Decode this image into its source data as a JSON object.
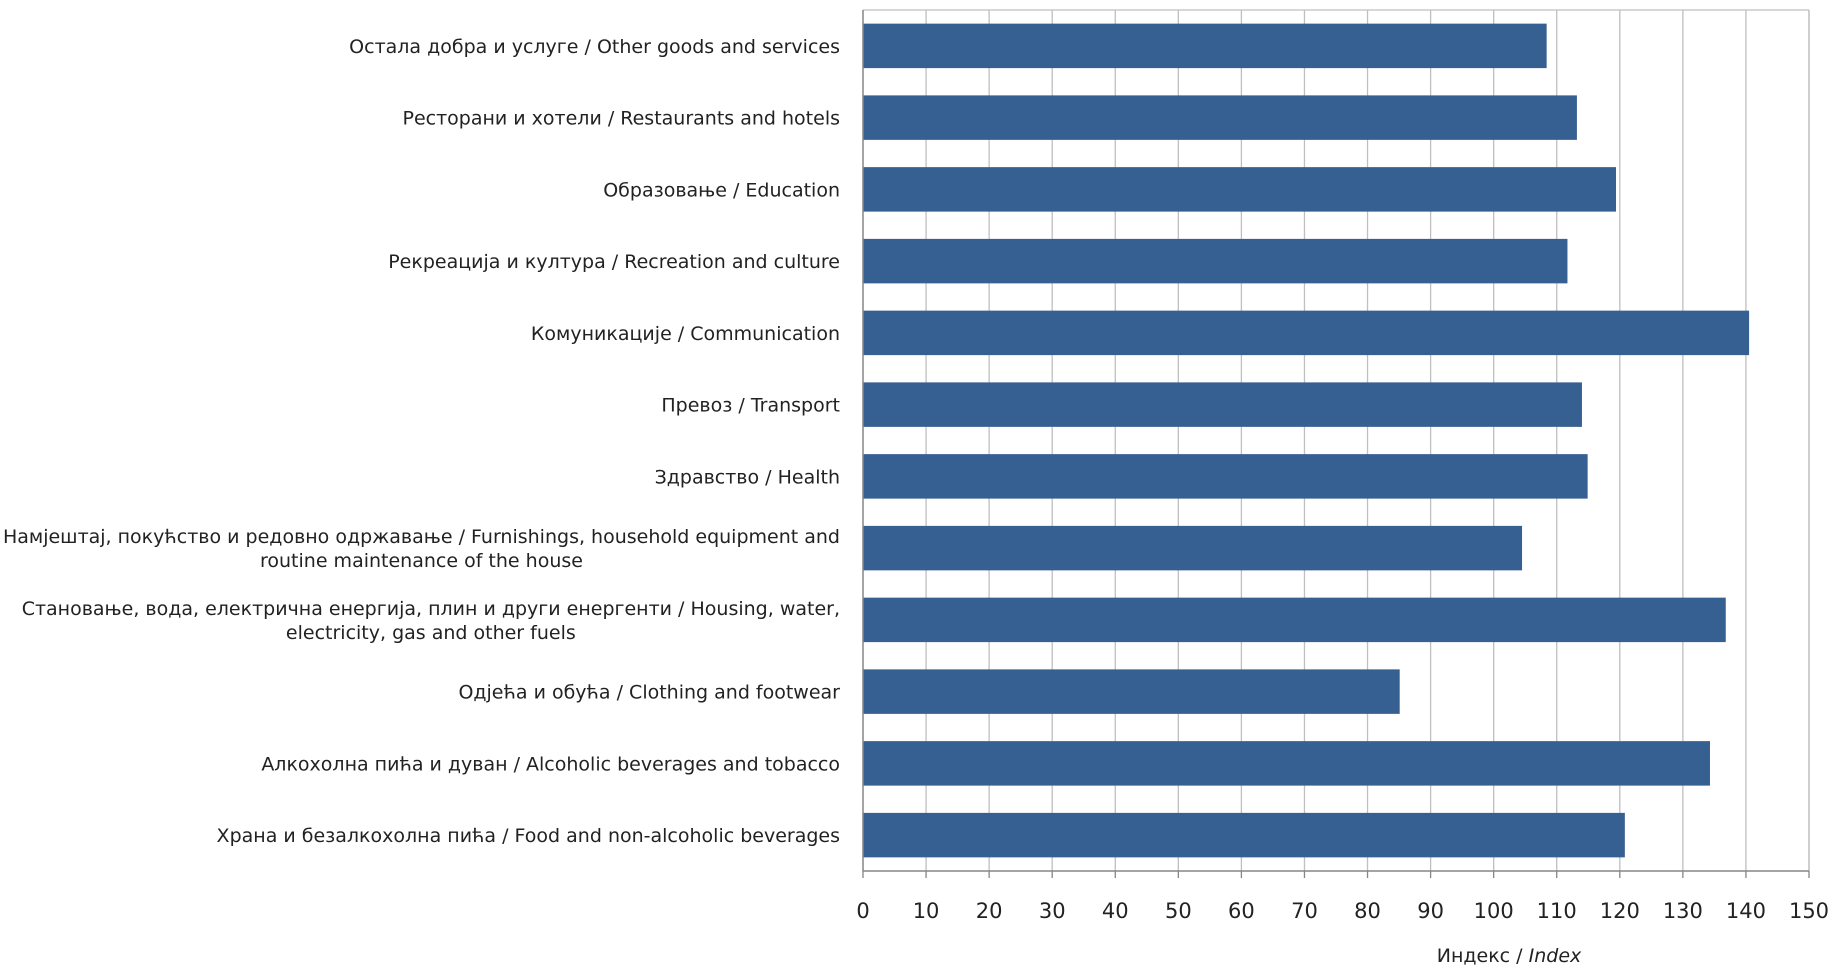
{
  "chart_data": {
    "type": "bar",
    "orientation": "horizontal",
    "categories": [
      "Храна и безалкохолна пића / Food and non-alcoholic beverages",
      "Алкохолна пића и дуван / Alcoholic beverages and tobacco",
      "Одјећа и обућа / Clothing and footwear",
      "Становање, вода, електрична енергија, плин и други енергенти / Housing, water, electricity, gas and other fuels",
      "Намјештај, покућство и редовно одржавање / Furnishings, household equipment and routine maintenance of the house",
      "Здравство / Health",
      "Превоз / Transport",
      "Комуникације / Communication",
      "Рекреација и култура / Recreation and culture",
      "Образовање / Education",
      "Ресторани и хотели / Restaurants and hotels",
      "Остала добра и услуге / Other goods and services"
    ],
    "category_lines": [
      [
        "Храна и безалкохолна пића / Food and non-alcoholic beverages"
      ],
      [
        "Алкохолна пића и дуван / Alcoholic beverages and tobacco"
      ],
      [
        "Одјећа и обућа / Clothing and footwear"
      ],
      [
        "Становање, вода, електрична енергија, плин и други енергенти / Housing, water,",
        "electricity, gas and other fuels"
      ],
      [
        "Намјештај, покућство и редовно одржавање / Furnishings, household equipment and",
        "routine maintenance of the house"
      ],
      [
        "Здравство / Health"
      ],
      [
        "Превоз / Transport"
      ],
      [
        "Комуникације / Communication"
      ],
      [
        "Рекреација и култура / Recreation and culture"
      ],
      [
        "Образовање / Education"
      ],
      [
        "Ресторани и хотели / Restaurants and hotels"
      ],
      [
        "Остала добра и услуге / Other goods and services"
      ]
    ],
    "values": [
      120.8,
      134.3,
      85.1,
      136.8,
      104.5,
      114.9,
      114.0,
      140.5,
      111.7,
      119.4,
      113.2,
      108.4
    ],
    "xlim": [
      0,
      150
    ],
    "xticks": [
      "0",
      "10",
      "20",
      "30",
      "40",
      "50",
      "60",
      "70",
      "80",
      "90",
      "100",
      "110",
      "120",
      "130",
      "140",
      "150"
    ],
    "xlabel": "Индекс / ",
    "xlabel_italic": "Index",
    "title": "",
    "grid": true,
    "legend": "none",
    "bar_color": "#376092",
    "grid_color": "#BFBFBF",
    "axis_color": "#868686"
  }
}
